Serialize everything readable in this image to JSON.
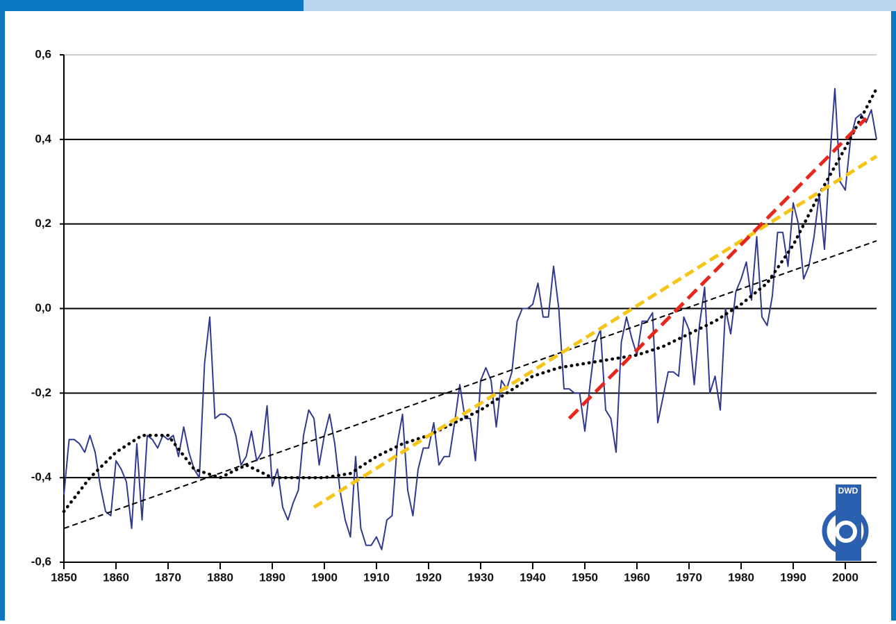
{
  "chart_data": {
    "type": "line",
    "xlim": [
      1850,
      2006
    ],
    "xticks": [
      1850,
      1860,
      1870,
      1880,
      1890,
      1900,
      1910,
      1920,
      1930,
      1940,
      1950,
      1960,
      1970,
      1980,
      1990,
      2000
    ],
    "ylim": [
      -0.6,
      0.6
    ],
    "yticks": [
      {
        "value": -0.6,
        "label": "-0,6"
      },
      {
        "value": -0.4,
        "label": "-0,4"
      },
      {
        "value": -0.2,
        "label": "-0,2"
      },
      {
        "value": 0,
        "label": "0,0"
      },
      {
        "value": 0.2,
        "label": "0,2"
      },
      {
        "value": 0.4,
        "label": "0,4"
      },
      {
        "value": 0.6,
        "label": "0,6"
      }
    ],
    "grid": true,
    "logo_text": "DWD",
    "series": [
      {
        "color": "#2f3a8f",
        "style": "solid",
        "x": [
          1850,
          1851,
          1852,
          1853,
          1854,
          1855,
          1856,
          1857,
          1858,
          1859,
          1860,
          1861,
          1862,
          1863,
          1864,
          1865,
          1866,
          1867,
          1868,
          1869,
          1870,
          1871,
          1872,
          1873,
          1874,
          1875,
          1876,
          1877,
          1878,
          1879,
          1880,
          1881,
          1882,
          1883,
          1884,
          1885,
          1886,
          1887,
          1888,
          1889,
          1890,
          1891,
          1892,
          1893,
          1894,
          1895,
          1896,
          1897,
          1898,
          1899,
          1900,
          1901,
          1902,
          1903,
          1904,
          1905,
          1906,
          1907,
          1908,
          1909,
          1910,
          1911,
          1912,
          1913,
          1914,
          1915,
          1916,
          1917,
          1918,
          1919,
          1920,
          1921,
          1922,
          1923,
          1924,
          1925,
          1926,
          1927,
          1928,
          1929,
          1930,
          1931,
          1932,
          1933,
          1934,
          1935,
          1936,
          1937,
          1938,
          1939,
          1940,
          1941,
          1942,
          1943,
          1944,
          1945,
          1946,
          1947,
          1948,
          1949,
          1950,
          1951,
          1952,
          1953,
          1954,
          1955,
          1956,
          1957,
          1958,
          1959,
          1960,
          1961,
          1962,
          1963,
          1964,
          1965,
          1966,
          1967,
          1968,
          1969,
          1970,
          1971,
          1972,
          1973,
          1974,
          1975,
          1976,
          1977,
          1978,
          1979,
          1980,
          1981,
          1982,
          1983,
          1984,
          1985,
          1986,
          1987,
          1988,
          1989,
          1990,
          1991,
          1992,
          1993,
          1994,
          1995,
          1996,
          1997,
          1998,
          1999,
          2000,
          2001,
          2002,
          2003,
          2004,
          2005,
          2006
        ],
        "values": [
          -0.44,
          -0.31,
          -0.31,
          -0.32,
          -0.34,
          -0.3,
          -0.34,
          -0.42,
          -0.48,
          -0.49,
          -0.36,
          -0.38,
          -0.41,
          -0.52,
          -0.32,
          -0.5,
          -0.3,
          -0.31,
          -0.33,
          -0.3,
          -0.31,
          -0.3,
          -0.35,
          -0.28,
          -0.34,
          -0.38,
          -0.4,
          -0.13,
          -0.02,
          -0.26,
          -0.25,
          -0.25,
          -0.26,
          -0.3,
          -0.37,
          -0.35,
          -0.29,
          -0.36,
          -0.34,
          -0.23,
          -0.42,
          -0.38,
          -0.47,
          -0.5,
          -0.46,
          -0.43,
          -0.3,
          -0.24,
          -0.26,
          -0.37,
          -0.3,
          -0.25,
          -0.32,
          -0.43,
          -0.5,
          -0.54,
          -0.35,
          -0.52,
          -0.56,
          -0.56,
          -0.54,
          -0.57,
          -0.5,
          -0.49,
          -0.32,
          -0.25,
          -0.43,
          -0.49,
          -0.38,
          -0.33,
          -0.33,
          -0.27,
          -0.37,
          -0.35,
          -0.35,
          -0.27,
          -0.18,
          -0.26,
          -0.26,
          -0.36,
          -0.17,
          -0.14,
          -0.17,
          -0.28,
          -0.17,
          -0.19,
          -0.15,
          -0.03,
          0,
          0,
          0.01,
          0.06,
          -0.02,
          -0.02,
          0.1,
          0,
          -0.19,
          -0.19,
          -0.2,
          -0.2,
          -0.29,
          -0.18,
          -0.08,
          -0.05,
          -0.24,
          -0.26,
          -0.34,
          -0.08,
          -0.02,
          -0.07,
          -0.11,
          -0.03,
          -0.03,
          -0.01,
          -0.27,
          -0.21,
          -0.15,
          -0.15,
          -0.16,
          -0.02,
          -0.05,
          -0.18,
          -0.04,
          0.05,
          -0.2,
          -0.16,
          -0.24,
          0,
          -0.06,
          0.04,
          0.07,
          0.11,
          0.02,
          0.17,
          -0.02,
          -0.04,
          0.03,
          0.18,
          0.18,
          0.1,
          0.25,
          0.2,
          0.07,
          0.1,
          0.17,
          0.27,
          0.14,
          0.35,
          0.52,
          0.3,
          0.28,
          0.4,
          0.45,
          0.46,
          0.44,
          0.47,
          0.4
        ]
      },
      {
        "color": "#000000",
        "style": "dotted",
        "x": [
          1850,
          1855,
          1860,
          1865,
          1870,
          1875,
          1880,
          1885,
          1890,
          1895,
          1900,
          1905,
          1910,
          1915,
          1920,
          1925,
          1930,
          1935,
          1940,
          1945,
          1950,
          1955,
          1960,
          1965,
          1970,
          1975,
          1980,
          1985,
          1990,
          1995,
          2000,
          2006
        ],
        "values": [
          -0.48,
          -0.4,
          -0.34,
          -0.3,
          -0.3,
          -0.38,
          -0.4,
          -0.37,
          -0.4,
          -0.4,
          -0.4,
          -0.39,
          -0.35,
          -0.32,
          -0.3,
          -0.27,
          -0.24,
          -0.2,
          -0.16,
          -0.14,
          -0.13,
          -0.12,
          -0.11,
          -0.09,
          -0.06,
          -0.03,
          0.01,
          0.06,
          0.15,
          0.27,
          0.38,
          0.52
        ]
      },
      {
        "color": "#000000",
        "style": "dashed",
        "x": [
          1850,
          2006
        ],
        "values": [
          -0.52,
          0.16
        ]
      },
      {
        "color": "#f5c518",
        "style": "yellow-dash",
        "x": [
          1898,
          2006
        ],
        "values": [
          -0.47,
          0.36
        ]
      },
      {
        "color": "#e8271c",
        "style": "red-dash",
        "x": [
          1947,
          2004
        ],
        "values": [
          -0.26,
          0.45
        ]
      }
    ]
  }
}
